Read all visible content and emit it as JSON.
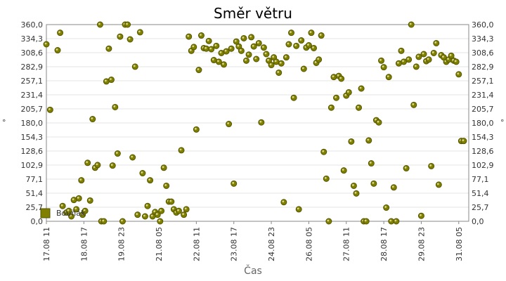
{
  "chart_data": {
    "type": "scatter",
    "title": "Směr větru",
    "xlabel": "Čas",
    "ylabel": "°",
    "ylabel_right": "°",
    "ylim": [
      0,
      360
    ],
    "yticks": [
      "0,0",
      "25,7",
      "51,4",
      "77,1",
      "102,9",
      "128,6",
      "154,3",
      "180,0",
      "205,7",
      "231,4",
      "257,1",
      "282,9",
      "308,6",
      "334,3",
      "360,0"
    ],
    "xlim": [
      "17.08 11:00",
      "31.08 13:00"
    ],
    "xticks": [
      "17.08 11",
      "18.08 17",
      "19.08 23",
      "21.08 05",
      "22.08 11",
      "23.08 17",
      "24.08 23",
      "26.08 05",
      "27.08 11",
      "28.08 17",
      "29.08 23",
      "31.08 05"
    ],
    "grid": true,
    "legend_position": "bottom-left",
    "series_color": "#808000",
    "series": [
      {
        "name": "Bouňák",
        "points": [
          [
            "17.08 11:00",
            324
          ],
          [
            "17.08 14:00",
            204
          ],
          [
            "17.08 20:00",
            313
          ],
          [
            "17.08 22:00",
            345
          ],
          [
            "18.08 00:00",
            28
          ],
          [
            "18.08 03:00",
            16
          ],
          [
            "18.08 05:00",
            19
          ],
          [
            "18.08 07:00",
            9
          ],
          [
            "18.08 09:00",
            39
          ],
          [
            "18.08 11:00",
            22
          ],
          [
            "18.08 13:00",
            42
          ],
          [
            "18.08 15:00",
            75
          ],
          [
            "18.08 16:00",
            12
          ],
          [
            "18.08 18:00",
            19
          ],
          [
            "18.08 20:00",
            107
          ],
          [
            "18.08 22:00",
            38
          ],
          [
            "19.08 00:00",
            187
          ],
          [
            "19.08 02:00",
            98
          ],
          [
            "19.08 04:00",
            103
          ],
          [
            "19.08 06:00",
            360
          ],
          [
            "19.08 07:00",
            0
          ],
          [
            "19.08 09:00",
            0
          ],
          [
            "19.08 11:00",
            256
          ],
          [
            "19.08 13:00",
            316
          ],
          [
            "19.08 15:00",
            259
          ],
          [
            "19.08 16:00",
            102
          ],
          [
            "19.08 18:00",
            209
          ],
          [
            "19.08 20:00",
            124
          ],
          [
            "19.08 22:00",
            338
          ],
          [
            "20.08 00:00",
            0
          ],
          [
            "20.08 02:00",
            360
          ],
          [
            "20.08 04:00",
            360
          ],
          [
            "20.08 06:00",
            333
          ],
          [
            "20.08 08:00",
            117
          ],
          [
            "20.08 10:00",
            283
          ],
          [
            "20.08 12:00",
            12
          ],
          [
            "20.08 14:00",
            346
          ],
          [
            "20.08 16:00",
            88
          ],
          [
            "20.08 18:00",
            9
          ],
          [
            "20.08 20:00",
            28
          ],
          [
            "20.08 22:00",
            75
          ],
          [
            "21.08 00:00",
            9
          ],
          [
            "21.08 02:00",
            17
          ],
          [
            "21.08 04:00",
            12
          ],
          [
            "21.08 06:00",
            0
          ],
          [
            "21.08 07:00",
            19
          ],
          [
            "21.08 09:00",
            98
          ],
          [
            "21.08 11:00",
            65
          ],
          [
            "21.08 13:00",
            36
          ],
          [
            "21.08 15:00",
            36
          ],
          [
            "21.08 17:00",
            22
          ],
          [
            "21.08 19:00",
            16
          ],
          [
            "21.08 21:00",
            19
          ],
          [
            "21.08 23:00",
            130
          ],
          [
            "22.08 01:00",
            12
          ],
          [
            "22.08 03:00",
            22
          ],
          [
            "22.08 05:00",
            338
          ],
          [
            "22.08 07:00",
            312
          ],
          [
            "22.08 09:00",
            319
          ],
          [
            "22.08 11:00",
            168
          ],
          [
            "22.08 13:00",
            277
          ],
          [
            "22.08 15:00",
            340
          ],
          [
            "22.08 17:00",
            317
          ],
          [
            "22.08 19:00",
            316
          ],
          [
            "22.08 21:00",
            330
          ],
          [
            "22.08 23:00",
            315
          ],
          [
            "23.08 01:00",
            295
          ],
          [
            "23.08 03:00",
            321
          ],
          [
            "23.08 05:00",
            292
          ],
          [
            "23.08 07:00",
            308
          ],
          [
            "23.08 09:00",
            287
          ],
          [
            "23.08 11:00",
            311
          ],
          [
            "23.08 13:00",
            178
          ],
          [
            "23.08 15:00",
            316
          ],
          [
            "23.08 17:00",
            69
          ],
          [
            "23.08 19:00",
            329
          ],
          [
            "23.08 21:00",
            320
          ],
          [
            "23.08 23:00",
            312
          ],
          [
            "24.08 01:00",
            335
          ],
          [
            "24.08 03:00",
            294
          ],
          [
            "24.08 05:00",
            305
          ],
          [
            "24.08 07:00",
            337
          ],
          [
            "24.08 09:00",
            320
          ],
          [
            "24.08 11:00",
            297
          ],
          [
            "24.08 13:00",
            326
          ],
          [
            "24.08 15:00",
            181
          ],
          [
            "24.08 17:00",
            318
          ],
          [
            "24.08 19:00",
            306
          ],
          [
            "24.08 21:00",
            294
          ],
          [
            "24.08 23:00",
            286
          ],
          [
            "25.08 01:00",
            300
          ],
          [
            "25.08 03:00",
            292
          ],
          [
            "25.08 05:00",
            272
          ],
          [
            "25.08 07:00",
            289
          ],
          [
            "25.08 09:00",
            35
          ],
          [
            "25.08 11:00",
            300
          ],
          [
            "25.08 13:00",
            324
          ],
          [
            "25.08 15:00",
            345
          ],
          [
            "25.08 17:00",
            226
          ],
          [
            "25.08 19:00",
            321
          ],
          [
            "25.08 21:00",
            22
          ],
          [
            "25.08 23:00",
            331
          ],
          [
            "26.08 01:00",
            279
          ],
          [
            "26.08 03:00",
            318
          ],
          [
            "26.08 05:00",
            322
          ],
          [
            "26.08 07:00",
            345
          ],
          [
            "26.08 09:00",
            317
          ],
          [
            "26.08 11:00",
            290
          ],
          [
            "26.08 13:00",
            296
          ],
          [
            "26.08 15:00",
            340
          ],
          [
            "26.08 17:00",
            127
          ],
          [
            "26.08 19:00",
            78
          ],
          [
            "26.08 21:00",
            0
          ],
          [
            "26.08 23:00",
            208
          ],
          [
            "27.08 01:00",
            264
          ],
          [
            "27.08 03:00",
            226
          ],
          [
            "27.08 05:00",
            266
          ],
          [
            "27.08 07:00",
            261
          ],
          [
            "27.08 09:00",
            93
          ],
          [
            "27.08 11:00",
            230
          ],
          [
            "27.08 13:00",
            236
          ],
          [
            "27.08 15:00",
            146
          ],
          [
            "27.08 17:00",
            65
          ],
          [
            "27.08 19:00",
            51
          ],
          [
            "27.08 21:00",
            208
          ],
          [
            "27.08 23:00",
            243
          ],
          [
            "28.08 01:00",
            0
          ],
          [
            "28.08 03:00",
            0
          ],
          [
            "28.08 05:00",
            148
          ],
          [
            "28.08 07:00",
            106
          ],
          [
            "28.08 09:00",
            69
          ],
          [
            "28.08 11:00",
            185
          ],
          [
            "28.08 13:00",
            181
          ],
          [
            "28.08 15:00",
            294
          ],
          [
            "28.08 17:00",
            282
          ],
          [
            "28.08 19:00",
            25
          ],
          [
            "28.08 21:00",
            264
          ],
          [
            "28.08 23:00",
            0
          ],
          [
            "29.08 01:00",
            62
          ],
          [
            "29.08 03:00",
            0
          ],
          [
            "29.08 05:00",
            289
          ],
          [
            "29.08 07:00",
            312
          ],
          [
            "29.08 09:00",
            292
          ],
          [
            "29.08 11:00",
            97
          ],
          [
            "29.08 13:00",
            296
          ],
          [
            "29.08 15:00",
            360
          ],
          [
            "29.08 17:00",
            213
          ],
          [
            "29.08 19:00",
            283
          ],
          [
            "29.08 21:00",
            301
          ],
          [
            "29.08 23:00",
            10
          ],
          [
            "30.08 01:00",
            306
          ],
          [
            "30.08 03:00",
            293
          ],
          [
            "30.08 05:00",
            296
          ],
          [
            "30.08 07:00",
            101
          ],
          [
            "30.08 09:00",
            308
          ],
          [
            "30.08 11:00",
            326
          ],
          [
            "30.08 13:00",
            67
          ],
          [
            "30.08 15:00",
            304
          ],
          [
            "30.08 17:00",
            300
          ],
          [
            "30.08 19:00",
            292
          ],
          [
            "30.08 21:00",
            296
          ],
          [
            "30.08 23:00",
            303
          ],
          [
            "31.08 01:00",
            294
          ],
          [
            "31.08 03:00",
            292
          ],
          [
            "31.08 05:00",
            269
          ],
          [
            "31.08 07:00",
            147
          ],
          [
            "31.08 09:00",
            147
          ]
        ]
      }
    ]
  }
}
